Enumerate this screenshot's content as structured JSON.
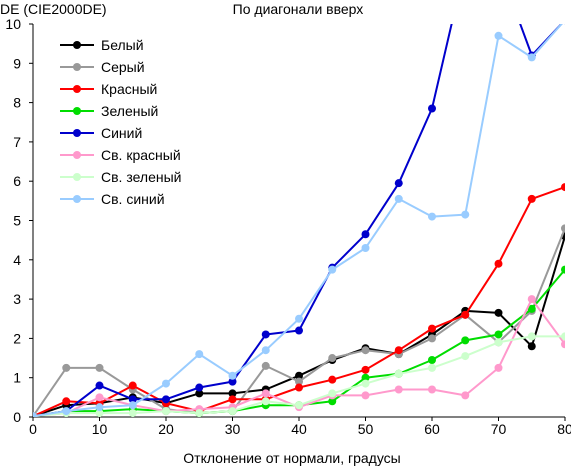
{
  "chart_data": {
    "type": "line",
    "title": "По диагонали вверх",
    "ylabel": "DE (CIE2000DE)",
    "xlabel": "Отклонение от нормали, градусы",
    "xlim": [
      0,
      80
    ],
    "ylim": [
      0,
      10
    ],
    "xticks": [
      0,
      10,
      20,
      30,
      40,
      50,
      60,
      70,
      80
    ],
    "yticks": [
      0,
      1,
      2,
      3,
      4,
      5,
      6,
      7,
      8,
      9,
      10
    ],
    "grid": false,
    "legend_position": "top-left",
    "x": [
      0,
      5,
      10,
      15,
      20,
      25,
      30,
      35,
      40,
      45,
      50,
      55,
      60,
      65,
      70,
      75,
      80
    ],
    "series": [
      {
        "name": "Белый",
        "color": "#000000",
        "values": [
          0.02,
          0.3,
          0.35,
          0.5,
          0.35,
          0.6,
          0.6,
          0.7,
          1.05,
          1.45,
          1.75,
          1.6,
          2.1,
          2.7,
          2.65,
          1.8,
          4.6
        ]
      },
      {
        "name": "Серый",
        "color": "#999999",
        "values": [
          0.02,
          1.25,
          1.25,
          0.7,
          0.2,
          0.1,
          0.15,
          1.3,
          0.9,
          1.5,
          1.7,
          1.6,
          2.0,
          2.6,
          1.9,
          2.7,
          4.8
        ]
      },
      {
        "name": "Красный",
        "color": "#ff0000",
        "values": [
          0.02,
          0.4,
          0.35,
          0.8,
          0.35,
          0.15,
          0.45,
          0.45,
          0.75,
          0.95,
          1.2,
          1.7,
          2.25,
          2.6,
          3.9,
          5.55,
          5.85
        ]
      },
      {
        "name": "Зеленый",
        "color": "#00dd00",
        "values": [
          0.02,
          0.15,
          0.15,
          0.2,
          0.15,
          0.1,
          0.15,
          0.3,
          0.3,
          0.4,
          1.0,
          1.1,
          1.45,
          1.95,
          2.1,
          2.75,
          3.75
        ]
      },
      {
        "name": "Синий",
        "color": "#0000cc",
        "values": [
          0.02,
          0.15,
          0.8,
          0.45,
          0.45,
          0.75,
          0.9,
          2.1,
          2.2,
          3.8,
          4.65,
          5.95,
          7.85,
          11.5,
          11.5,
          9.2,
          10.1
        ]
      },
      {
        "name": "Св. красный",
        "color": "#ff99cc",
        "values": [
          0.02,
          0.1,
          0.5,
          0.3,
          0.15,
          0.2,
          0.25,
          0.6,
          0.25,
          0.55,
          0.55,
          0.7,
          0.7,
          0.55,
          1.25,
          3.0,
          1.85
        ]
      },
      {
        "name": "Св. зеленый",
        "color": "#ccffcc",
        "values": [
          0.02,
          0.1,
          0.1,
          0.1,
          0.15,
          0.1,
          0.15,
          0.4,
          0.3,
          0.6,
          0.85,
          1.1,
          1.25,
          1.55,
          1.9,
          2.05,
          2.05
        ]
      },
      {
        "name": "Св. синий",
        "color": "#99ccff",
        "values": [
          0.02,
          0.15,
          0.25,
          0.3,
          0.85,
          1.6,
          1.05,
          1.7,
          2.5,
          3.75,
          4.3,
          5.55,
          5.1,
          5.15,
          9.7,
          9.15,
          10.1
        ]
      }
    ]
  }
}
